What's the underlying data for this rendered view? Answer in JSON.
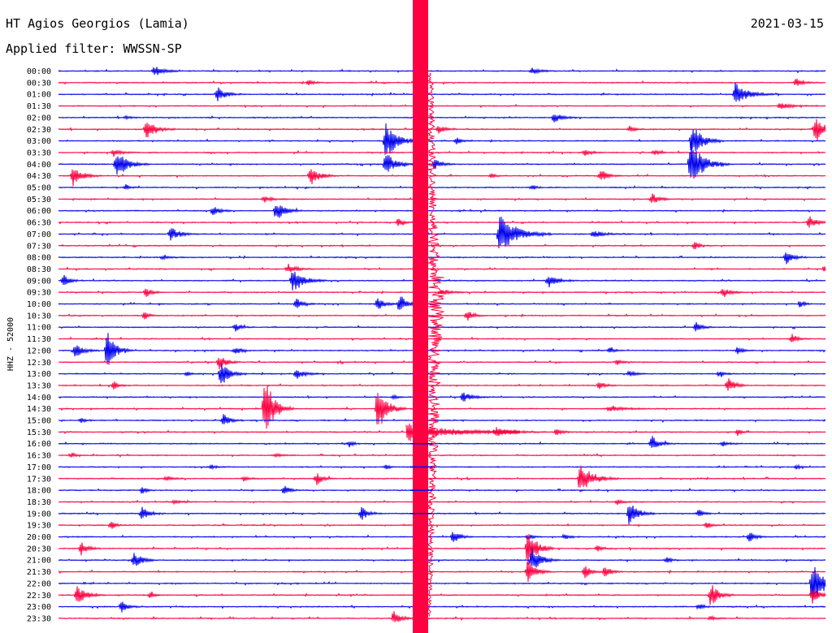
{
  "header": {
    "station": "HT Agios Georgios (Lamia)",
    "filter_label": "Applied filter: WWSSN-SP",
    "date": "2021-03-15"
  },
  "colors": {
    "blue": "#0000ee",
    "red": "#ff0040"
  },
  "chart_data": {
    "type": "line",
    "title": "HT Agios Georgios (Lamia)",
    "subtitle": "Applied filter: WWSSN-SP",
    "date": "2021-03-15",
    "ylabel": "HHZ - 52000",
    "row_labels": [
      "00:00",
      "00:30",
      "01:00",
      "01:30",
      "02:00",
      "02:30",
      "03:00",
      "03:30",
      "04:00",
      "04:30",
      "05:00",
      "05:30",
      "06:00",
      "06:30",
      "07:00",
      "07:30",
      "08:00",
      "08:30",
      "09:00",
      "09:30",
      "10:00",
      "10:30",
      "11:00",
      "11:30",
      "12:00",
      "12:30",
      "13:00",
      "13:30",
      "14:00",
      "14:30",
      "15:00",
      "15:30",
      "16:00",
      "16:30",
      "17:00",
      "17:30",
      "18:00",
      "18:30",
      "19:00",
      "19:30",
      "20:00",
      "20:30",
      "21:00",
      "21:30",
      "22:00",
      "22:30",
      "23:00",
      "23:30"
    ],
    "row_colors": [
      "blue",
      "red"
    ],
    "large_event_column": true,
    "grid": false
  }
}
